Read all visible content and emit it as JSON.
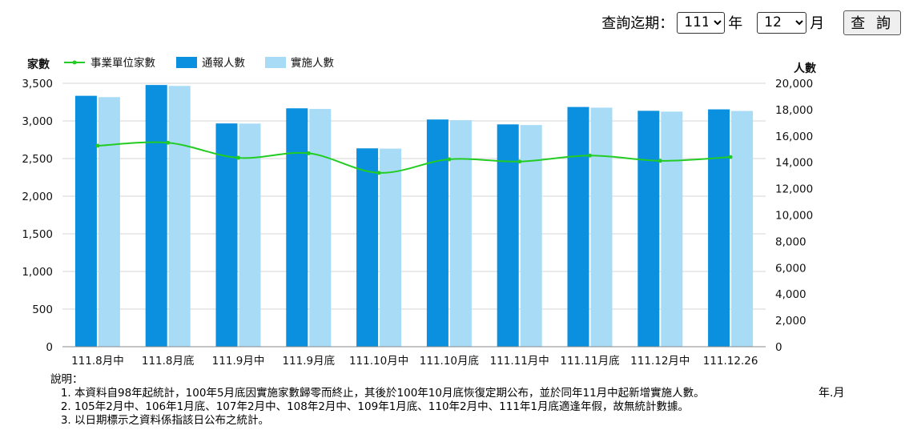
{
  "query": {
    "label": "查詢迄期：",
    "year_value": "111",
    "year_unit": "年",
    "month_value": "12",
    "month_unit": "月",
    "submit_label": "查 詢"
  },
  "chart_data": {
    "type": "bar",
    "categories": [
      "111.8月中",
      "111.8月底",
      "111.9月中",
      "111.9月底",
      "111.10月中",
      "111.10月底",
      "111.11月中",
      "111.11月底",
      "111.12月中",
      "111.12.26"
    ],
    "series": [
      {
        "name": "事業單位家數",
        "type": "line",
        "axis": "left",
        "values": [
          2670,
          2710,
          2510,
          2570,
          2310,
          2490,
          2460,
          2540,
          2470,
          2520
        ],
        "color": "#22cc22"
      },
      {
        "name": "通報人數",
        "type": "bar",
        "axis": "right",
        "values": [
          19050,
          19870,
          16950,
          18100,
          15060,
          17250,
          16880,
          18200,
          17910,
          18020
        ],
        "color": "#0a90de"
      },
      {
        "name": "實施人數",
        "type": "bar",
        "axis": "right",
        "values": [
          18950,
          19800,
          16940,
          18050,
          15040,
          17200,
          16830,
          18150,
          17850,
          17900
        ],
        "color": "#a8dcf6"
      }
    ],
    "yaxis_left": {
      "label": "家數",
      "min": 0,
      "max": 3500,
      "ticks": [
        0,
        500,
        1000,
        1500,
        2000,
        2500,
        3000,
        3500
      ],
      "tick_labels": [
        "0",
        "500",
        "1,000",
        "1,500",
        "2,000",
        "2,500",
        "3,000",
        "3,500"
      ]
    },
    "yaxis_right": {
      "label": "人數",
      "min": 0,
      "max": 20000,
      "ticks": [
        0,
        2000,
        4000,
        6000,
        8000,
        10000,
        12000,
        14000,
        16000,
        18000,
        20000
      ],
      "tick_labels": [
        "0",
        "2,000",
        "4,000",
        "6,000",
        "8,000",
        "10,000",
        "12,000",
        "14,000",
        "16,000",
        "18,000",
        "20,000"
      ]
    },
    "xlabel": "年.月",
    "grid": true,
    "legend": "top-left"
  },
  "notes": {
    "title": "說明：",
    "items": [
      "本資料自98年起統計，100年5月底因實施家數歸零而終止，其後於100年10月底恢復定期公布，並於同年11月中起新增實施人數。",
      "105年2月中、106年1月底、107年2月中、108年2月中、109年1月底、110年2月中、111年1月底適逢年假，故無統計數據。",
      "以日期標示之資料係指該日公布之統計。"
    ]
  }
}
